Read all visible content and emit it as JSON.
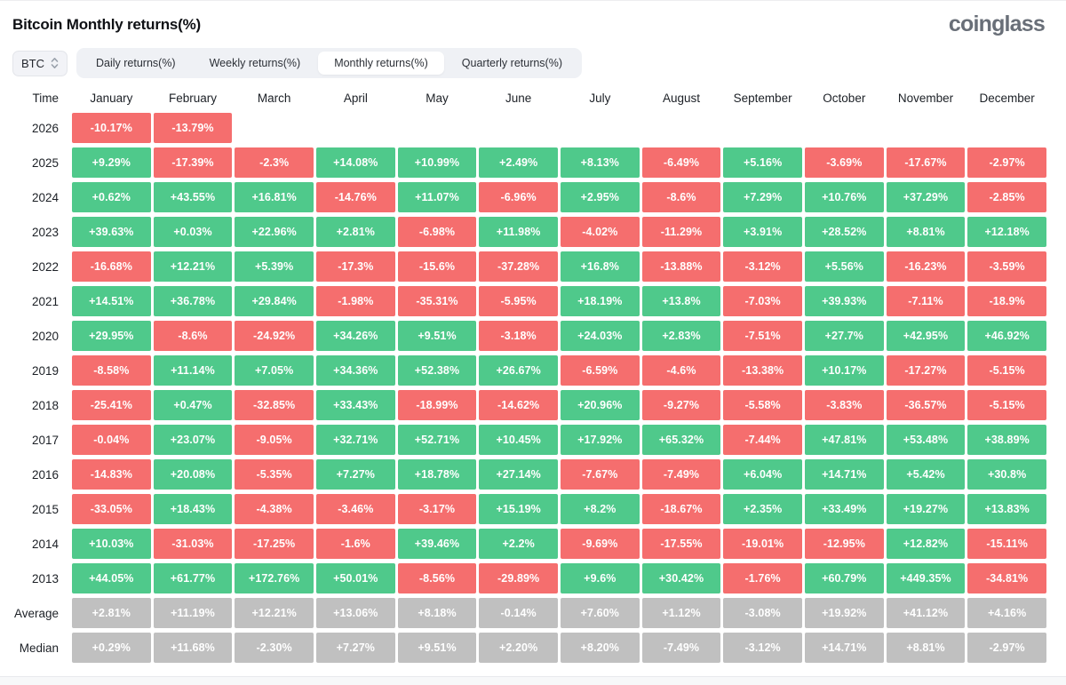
{
  "header": {
    "title": "Bitcoin Monthly returns(%)",
    "logo": "coinglass"
  },
  "controls": {
    "symbol_select": {
      "value": "BTC"
    },
    "tabs": [
      {
        "label": "Daily returns(%)",
        "active": false
      },
      {
        "label": "Weekly returns(%)",
        "active": false
      },
      {
        "label": "Monthly returns(%)",
        "active": true
      },
      {
        "label": "Quarterly returns(%)",
        "active": false
      }
    ]
  },
  "colors": {
    "positive": "#4fc98b",
    "negative": "#f56e6e",
    "summary": "#c0c0c0"
  },
  "chart_data": {
    "type": "heatmap",
    "title": "Bitcoin Monthly returns(%)",
    "time_header": "Time",
    "months": [
      "January",
      "February",
      "March",
      "April",
      "May",
      "June",
      "July",
      "August",
      "September",
      "October",
      "November",
      "December"
    ],
    "rows": [
      {
        "label": "2026",
        "type": "year",
        "values": [
          "-10.17%",
          "-13.79%",
          null,
          null,
          null,
          null,
          null,
          null,
          null,
          null,
          null,
          null
        ]
      },
      {
        "label": "2025",
        "type": "year",
        "values": [
          "+9.29%",
          "-17.39%",
          "-2.3%",
          "+14.08%",
          "+10.99%",
          "+2.49%",
          "+8.13%",
          "-6.49%",
          "+5.16%",
          "-3.69%",
          "-17.67%",
          "-2.97%"
        ]
      },
      {
        "label": "2024",
        "type": "year",
        "values": [
          "+0.62%",
          "+43.55%",
          "+16.81%",
          "-14.76%",
          "+11.07%",
          "-6.96%",
          "+2.95%",
          "-8.6%",
          "+7.29%",
          "+10.76%",
          "+37.29%",
          "-2.85%"
        ]
      },
      {
        "label": "2023",
        "type": "year",
        "values": [
          "+39.63%",
          "+0.03%",
          "+22.96%",
          "+2.81%",
          "-6.98%",
          "+11.98%",
          "-4.02%",
          "-11.29%",
          "+3.91%",
          "+28.52%",
          "+8.81%",
          "+12.18%"
        ]
      },
      {
        "label": "2022",
        "type": "year",
        "values": [
          "-16.68%",
          "+12.21%",
          "+5.39%",
          "-17.3%",
          "-15.6%",
          "-37.28%",
          "+16.8%",
          "-13.88%",
          "-3.12%",
          "+5.56%",
          "-16.23%",
          "-3.59%"
        ]
      },
      {
        "label": "2021",
        "type": "year",
        "values": [
          "+14.51%",
          "+36.78%",
          "+29.84%",
          "-1.98%",
          "-35.31%",
          "-5.95%",
          "+18.19%",
          "+13.8%",
          "-7.03%",
          "+39.93%",
          "-7.11%",
          "-18.9%"
        ]
      },
      {
        "label": "2020",
        "type": "year",
        "values": [
          "+29.95%",
          "-8.6%",
          "-24.92%",
          "+34.26%",
          "+9.51%",
          "-3.18%",
          "+24.03%",
          "+2.83%",
          "-7.51%",
          "+27.7%",
          "+42.95%",
          "+46.92%"
        ]
      },
      {
        "label": "2019",
        "type": "year",
        "values": [
          "-8.58%",
          "+11.14%",
          "+7.05%",
          "+34.36%",
          "+52.38%",
          "+26.67%",
          "-6.59%",
          "-4.6%",
          "-13.38%",
          "+10.17%",
          "-17.27%",
          "-5.15%"
        ]
      },
      {
        "label": "2018",
        "type": "year",
        "values": [
          "-25.41%",
          "+0.47%",
          "-32.85%",
          "+33.43%",
          "-18.99%",
          "-14.62%",
          "+20.96%",
          "-9.27%",
          "-5.58%",
          "-3.83%",
          "-36.57%",
          "-5.15%"
        ]
      },
      {
        "label": "2017",
        "type": "year",
        "values": [
          "-0.04%",
          "+23.07%",
          "-9.05%",
          "+32.71%",
          "+52.71%",
          "+10.45%",
          "+17.92%",
          "+65.32%",
          "-7.44%",
          "+47.81%",
          "+53.48%",
          "+38.89%"
        ]
      },
      {
        "label": "2016",
        "type": "year",
        "values": [
          "-14.83%",
          "+20.08%",
          "-5.35%",
          "+7.27%",
          "+18.78%",
          "+27.14%",
          "-7.67%",
          "-7.49%",
          "+6.04%",
          "+14.71%",
          "+5.42%",
          "+30.8%"
        ]
      },
      {
        "label": "2015",
        "type": "year",
        "values": [
          "-33.05%",
          "+18.43%",
          "-4.38%",
          "-3.46%",
          "-3.17%",
          "+15.19%",
          "+8.2%",
          "-18.67%",
          "+2.35%",
          "+33.49%",
          "+19.27%",
          "+13.83%"
        ]
      },
      {
        "label": "2014",
        "type": "year",
        "values": [
          "+10.03%",
          "-31.03%",
          "-17.25%",
          "-1.6%",
          "+39.46%",
          "+2.2%",
          "-9.69%",
          "-17.55%",
          "-19.01%",
          "-12.95%",
          "+12.82%",
          "-15.11%"
        ]
      },
      {
        "label": "2013",
        "type": "year",
        "values": [
          "+44.05%",
          "+61.77%",
          "+172.76%",
          "+50.01%",
          "-8.56%",
          "-29.89%",
          "+9.6%",
          "+30.42%",
          "-1.76%",
          "+60.79%",
          "+449.35%",
          "-34.81%"
        ]
      },
      {
        "label": "Average",
        "type": "summary",
        "values": [
          "+2.81%",
          "+11.19%",
          "+12.21%",
          "+13.06%",
          "+8.18%",
          "-0.14%",
          "+7.60%",
          "+1.12%",
          "-3.08%",
          "+19.92%",
          "+41.12%",
          "+4.16%"
        ]
      },
      {
        "label": "Median",
        "type": "summary",
        "values": [
          "+0.29%",
          "+11.68%",
          "-2.30%",
          "+7.27%",
          "+9.51%",
          "+2.20%",
          "+8.20%",
          "-7.49%",
          "-3.12%",
          "+14.71%",
          "+8.81%",
          "-2.97%"
        ]
      }
    ]
  }
}
